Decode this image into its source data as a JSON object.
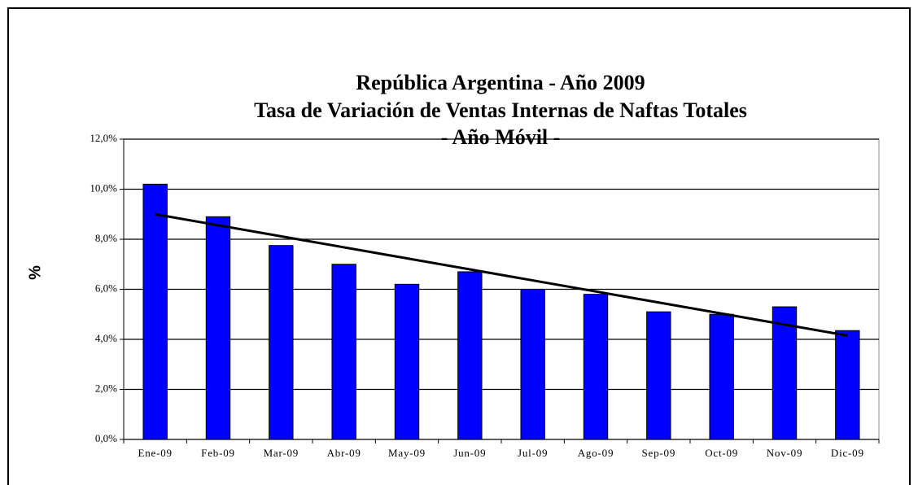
{
  "chart_data": {
    "type": "bar",
    "title": [
      "República Argentina - Año 2009",
      "Tasa de Variación  de Ventas Internas de Naftas Totales",
      "- Año Móvil -"
    ],
    "y_label": "%",
    "categories": [
      "Ene-09",
      "Feb-09",
      "Mar-09",
      "Abr-09",
      "May-09",
      "Jun-09",
      "Jul-09",
      "Ago-09",
      "Sep-09",
      "Oct-09",
      "Nov-09",
      "Dic-09"
    ],
    "values": [
      10.2,
      8.9,
      7.75,
      7.0,
      6.2,
      6.7,
      6.0,
      5.8,
      5.1,
      5.0,
      5.3,
      4.35
    ],
    "color": "#0000ff",
    "trend": [
      9.0,
      4.15
    ],
    "ylim": [
      0,
      12
    ],
    "yticks": [
      {
        "value": 0,
        "label": "0,0%"
      },
      {
        "value": 2,
        "label": "2,0%"
      },
      {
        "value": 4,
        "label": "4,0%"
      },
      {
        "value": 6,
        "label": "6,0%"
      },
      {
        "value": 8,
        "label": "8,0%"
      },
      {
        "value": 10,
        "label": "10,0%"
      },
      {
        "value": 12,
        "label": "12,0%"
      }
    ],
    "grid": true
  }
}
